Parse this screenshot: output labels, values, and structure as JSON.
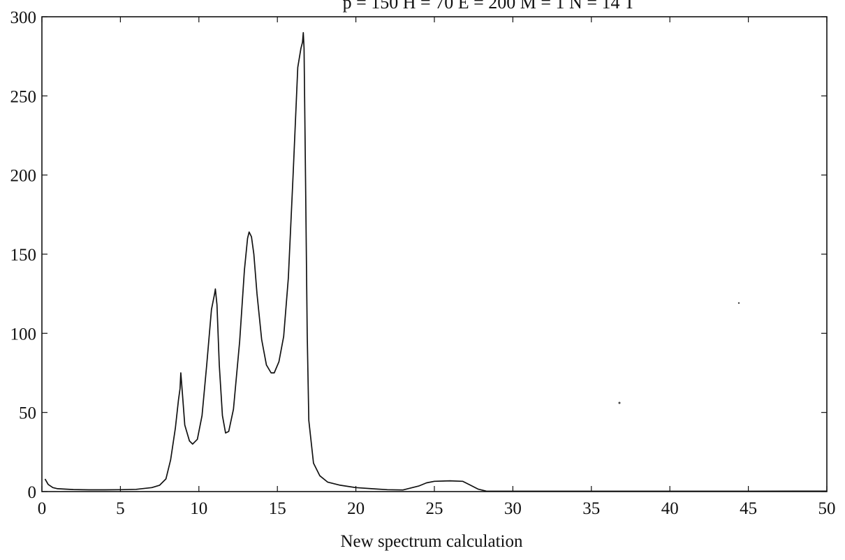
{
  "chart_data": {
    "type": "line",
    "title": "p = 150 H = 70 E = 200 M = 1 N = 14 T",
    "xlabel": "New spectrum calculation",
    "ylabel": "",
    "xlim": [
      0,
      50
    ],
    "ylim": [
      0,
      300
    ],
    "grid": false,
    "x_ticks": [
      0,
      5,
      10,
      15,
      20,
      25,
      30,
      35,
      40,
      45,
      50
    ],
    "y_ticks": [
      0,
      50,
      100,
      150,
      200,
      250,
      300
    ],
    "series": [
      {
        "points": [
          [
            0.2,
            8
          ],
          [
            0.4,
            4.5
          ],
          [
            0.7,
            2.5
          ],
          [
            1,
            1.8
          ],
          [
            2,
            1.3
          ],
          [
            3,
            1.1
          ],
          [
            4,
            1.1
          ],
          [
            5,
            1.2
          ],
          [
            6,
            1.4
          ],
          [
            7,
            2.5
          ],
          [
            7.5,
            4
          ],
          [
            7.9,
            8
          ],
          [
            8.2,
            20
          ],
          [
            8.5,
            40
          ],
          [
            8.7,
            58
          ],
          [
            8.8,
            65
          ],
          [
            8.85,
            75
          ],
          [
            8.95,
            62
          ],
          [
            9.1,
            42
          ],
          [
            9.4,
            32
          ],
          [
            9.6,
            30
          ],
          [
            9.9,
            33
          ],
          [
            10.2,
            48
          ],
          [
            10.5,
            80
          ],
          [
            10.8,
            115
          ],
          [
            11.0,
            125
          ],
          [
            11.05,
            128
          ],
          [
            11.15,
            118
          ],
          [
            11.3,
            80
          ],
          [
            11.5,
            48
          ],
          [
            11.7,
            37
          ],
          [
            11.9,
            38
          ],
          [
            12.2,
            52
          ],
          [
            12.6,
            95
          ],
          [
            12.9,
            140
          ],
          [
            13.1,
            160
          ],
          [
            13.2,
            164
          ],
          [
            13.35,
            161
          ],
          [
            13.5,
            150
          ],
          [
            13.7,
            125
          ],
          [
            14.0,
            96
          ],
          [
            14.3,
            80
          ],
          [
            14.6,
            75
          ],
          [
            14.8,
            75
          ],
          [
            15.1,
            82
          ],
          [
            15.4,
            98
          ],
          [
            15.7,
            135
          ],
          [
            16.0,
            200
          ],
          [
            16.3,
            268
          ],
          [
            16.5,
            280
          ],
          [
            16.6,
            284
          ],
          [
            16.65,
            290
          ],
          [
            16.7,
            280
          ],
          [
            16.8,
            190
          ],
          [
            16.9,
            100
          ],
          [
            17.0,
            45
          ],
          [
            17.3,
            18
          ],
          [
            17.7,
            10
          ],
          [
            18.2,
            6
          ],
          [
            19,
            4
          ],
          [
            20,
            2.5
          ],
          [
            21,
            1.8
          ],
          [
            22,
            1.2
          ],
          [
            23,
            1.0
          ],
          [
            24,
            3.5
          ],
          [
            24.5,
            5.5
          ],
          [
            25,
            6.5
          ],
          [
            26,
            6.8
          ],
          [
            26.8,
            6.5
          ],
          [
            27.3,
            4
          ],
          [
            27.8,
            1.5
          ],
          [
            28.3,
            0.3
          ],
          [
            29,
            0.2
          ],
          [
            35,
            0.2
          ],
          [
            40,
            0.2
          ],
          [
            45,
            0.2
          ],
          [
            50,
            0.3
          ]
        ]
      }
    ]
  }
}
